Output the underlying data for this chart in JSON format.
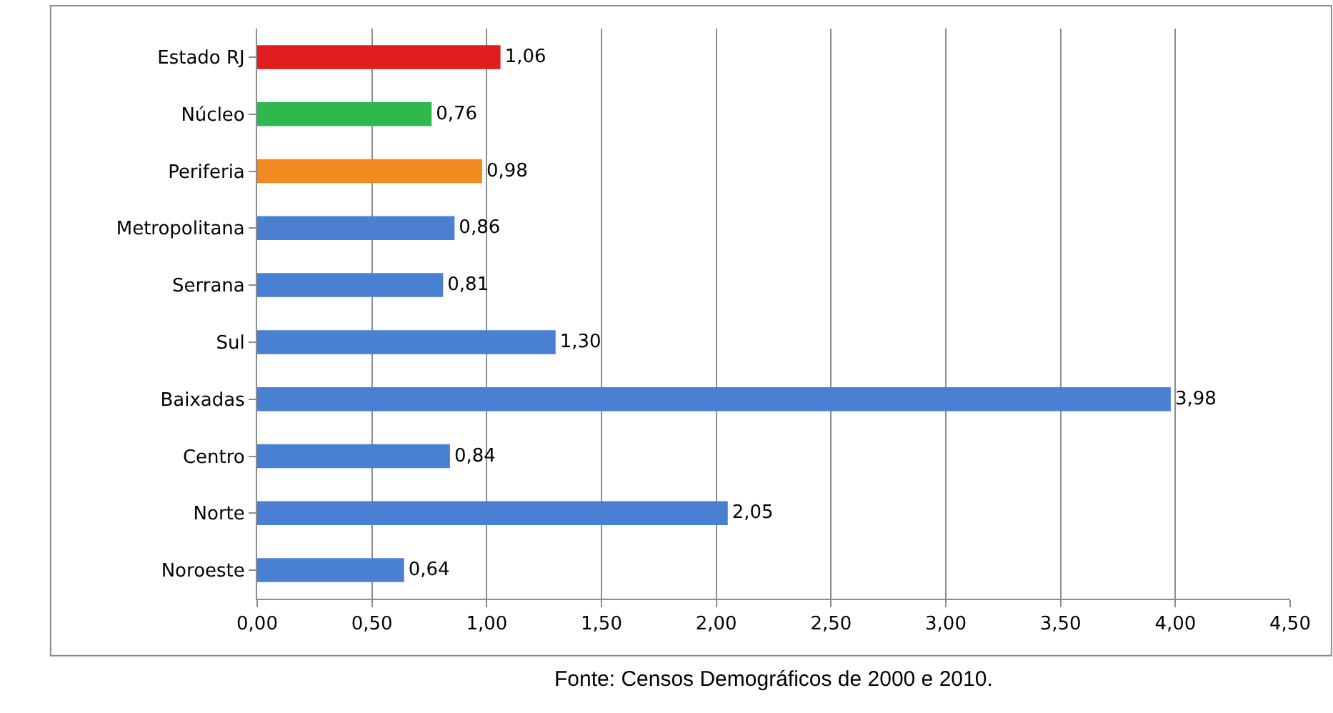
{
  "chart_data": {
    "type": "bar",
    "orientation": "horizontal",
    "categories": [
      "Estado RJ",
      "Núcleo",
      "Periferia",
      "Metropolitana",
      "Serrana",
      "Sul",
      "Baixadas",
      "Centro",
      "Norte",
      "Noroeste"
    ],
    "values": [
      1.06,
      0.76,
      0.98,
      0.86,
      0.81,
      1.3,
      3.98,
      0.84,
      2.05,
      0.64
    ],
    "colors": [
      "#e01e1e",
      "#2fb84e",
      "#f08a1e",
      "#4a80d2",
      "#4a80d2",
      "#4a80d2",
      "#4a80d2",
      "#4a80d2",
      "#4a80d2",
      "#4a80d2"
    ],
    "value_labels": [
      "1,06",
      "0,76",
      "0,98",
      "0,86",
      "0,81",
      "1,30",
      "3,98",
      "0,84",
      "2,05",
      "0,64"
    ],
    "xlim": [
      0,
      4.5
    ],
    "xticks": [
      {
        "value": 0,
        "label": "0,00"
      },
      {
        "value": 0.5,
        "label": "0,50"
      },
      {
        "value": 1,
        "label": "1,00"
      },
      {
        "value": 1.5,
        "label": "1,50"
      },
      {
        "value": 2,
        "label": "2,00"
      },
      {
        "value": 2.5,
        "label": "2,50"
      },
      {
        "value": 3,
        "label": "3,00"
      },
      {
        "value": 3.5,
        "label": "3,50"
      },
      {
        "value": 4,
        "label": "4,00"
      },
      {
        "value": 4.5,
        "label": "4,50"
      }
    ],
    "grid": "x",
    "annotations": [
      "Fonte: Censos Demográficos de 2000 e 2010."
    ]
  }
}
